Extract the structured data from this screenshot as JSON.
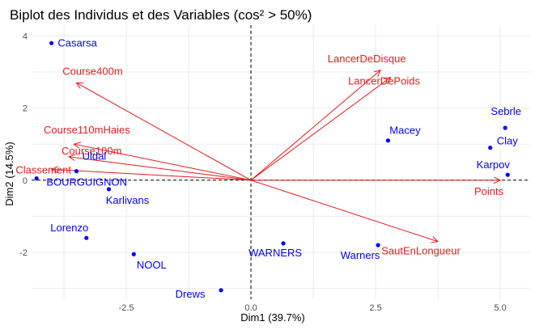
{
  "chart_data": {
    "type": "scatter",
    "title": "Biplot des Individus et des Variables (cos² > 50%)",
    "xlabel": "Dim1 (39.7%)",
    "ylabel": "Dim2 (14.5%)",
    "xlim": [
      -4.4,
      5.6
    ],
    "ylim": [
      -3.3,
      4.3
    ],
    "xticks": [
      "-2.5",
      "0.0",
      "2.5",
      "5.0"
    ],
    "xtick_values": [
      -2.5,
      0.0,
      2.5,
      5.0
    ],
    "yticks": [
      "-2",
      "0",
      "2",
      "4"
    ],
    "ytick_values": [
      -2,
      0,
      2,
      4
    ],
    "grid": true,
    "individuals_color": "#0000ff",
    "variables_color": "#e41a1c",
    "individuals": [
      {
        "name": "Casarsa",
        "x": -4.0,
        "y": 3.8
      },
      {
        "name": "Uldal",
        "x": -3.5,
        "y": 0.25
      },
      {
        "name": "BOURGUIGNON",
        "x": -4.3,
        "y": 0.05
      },
      {
        "name": "Karlivans",
        "x": -2.85,
        "y": -0.25
      },
      {
        "name": "Lorenzo",
        "x": -3.3,
        "y": -1.6
      },
      {
        "name": "NOOL",
        "x": -2.35,
        "y": -2.05
      },
      {
        "name": "Drews",
        "x": -0.6,
        "y": -3.05
      },
      {
        "name": "WARNERS",
        "x": 0.65,
        "y": -1.75
      },
      {
        "name": "Warners",
        "x": 2.55,
        "y": -1.8
      },
      {
        "name": "Macey",
        "x": 2.75,
        "y": 1.1
      },
      {
        "name": "Sebrle",
        "x": 5.1,
        "y": 1.45
      },
      {
        "name": "Clay",
        "x": 4.8,
        "y": 0.9
      },
      {
        "name": "Karpov",
        "x": 5.15,
        "y": 0.15
      }
    ],
    "variables": [
      {
        "name": "Course400m",
        "x": -3.5,
        "y": 2.7
      },
      {
        "name": "Course110mHaies",
        "x": -3.55,
        "y": 1.0
      },
      {
        "name": "Course100m",
        "x": -3.65,
        "y": 0.65
      },
      {
        "name": "Classement",
        "x": -4.0,
        "y": 0.3
      },
      {
        "name": "LancerDeDisque",
        "x": 2.6,
        "y": 3.05
      },
      {
        "name": "LancerDePoids",
        "x": 2.8,
        "y": 2.85
      },
      {
        "name": "Points",
        "x": 5.0,
        "y": 0.0
      },
      {
        "name": "SautEnLongueur",
        "x": 3.75,
        "y": -1.7
      }
    ]
  }
}
